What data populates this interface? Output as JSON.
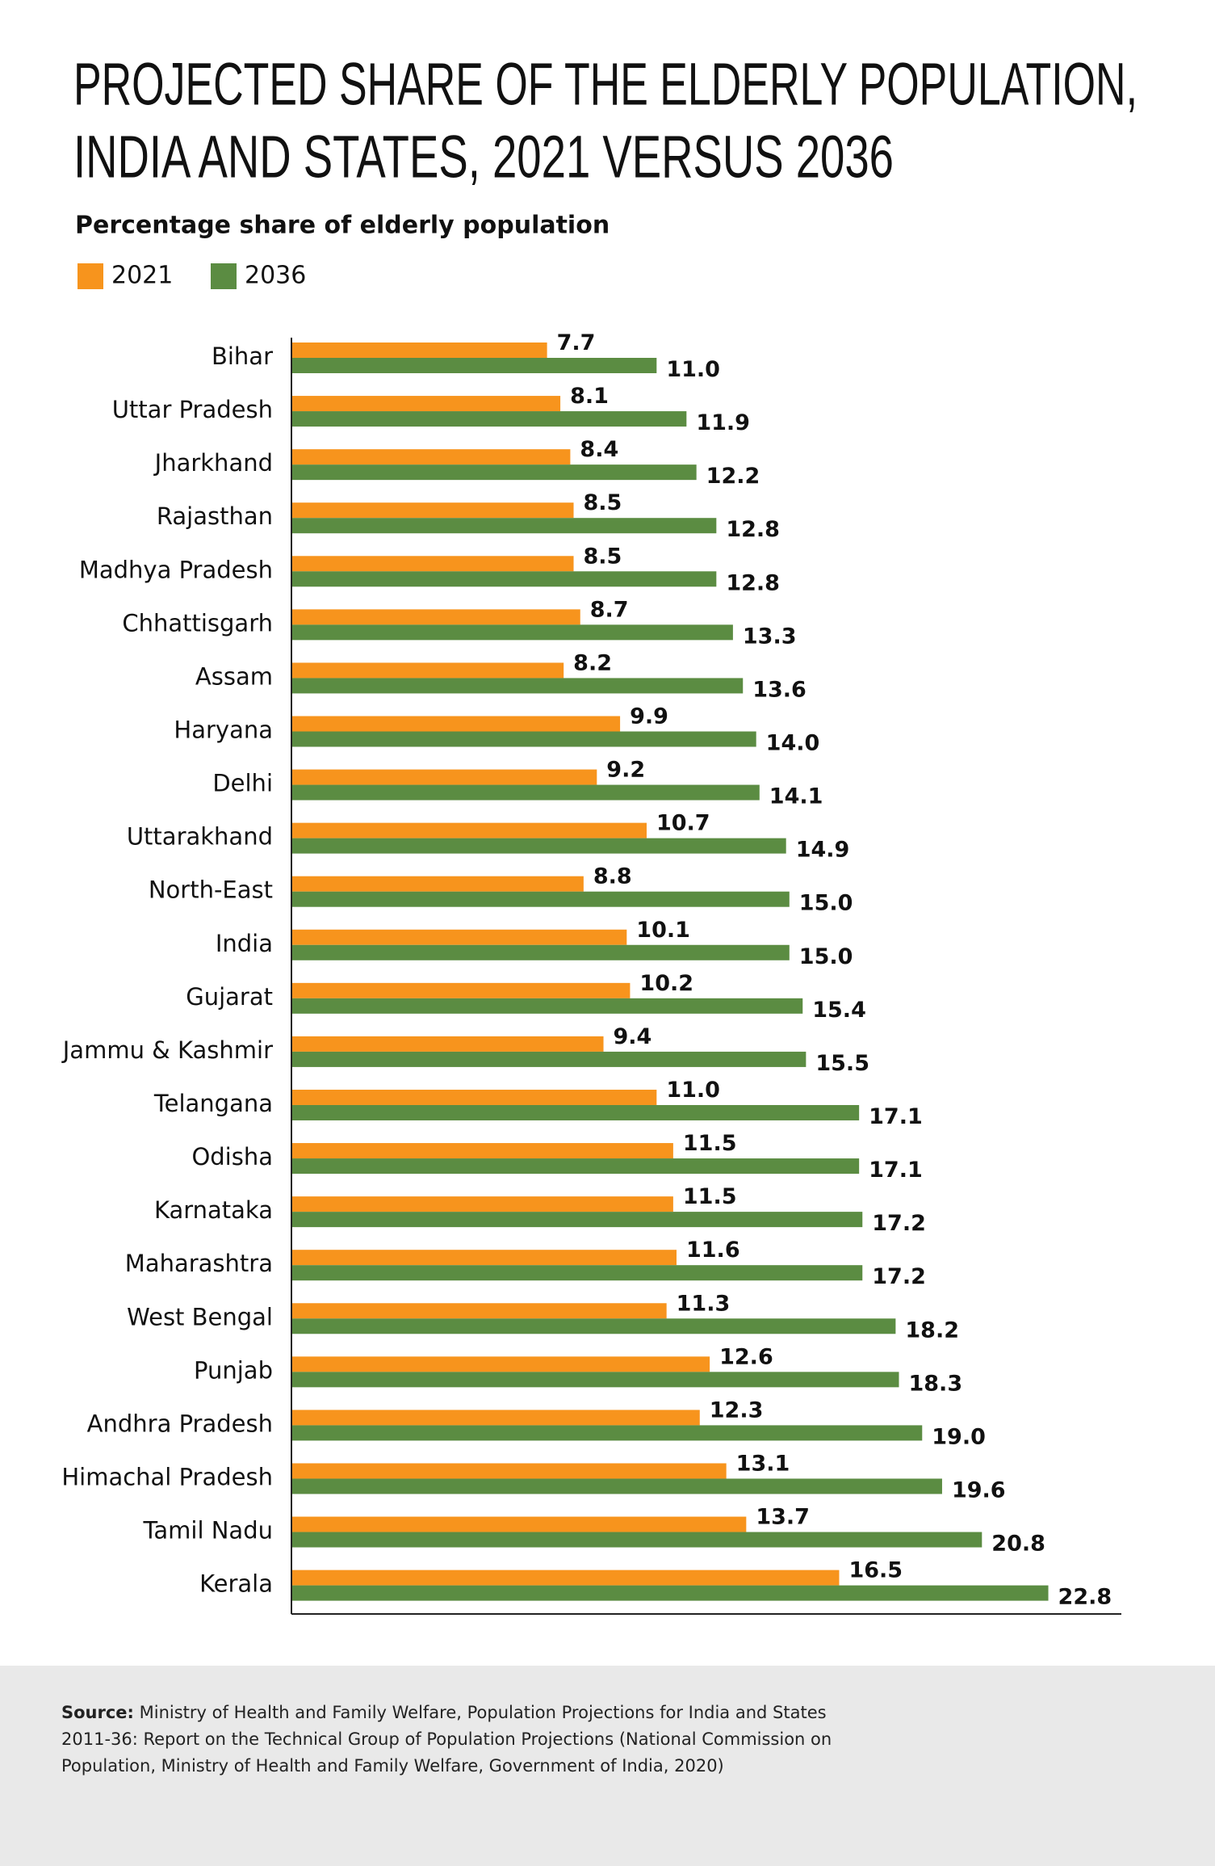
{
  "chart_data": {
    "type": "bar",
    "orientation": "horizontal",
    "title": [
      "PROJECTED SHARE OF THE ELDERLY POPULATION,",
      "INDIA AND STATES, 2021 VERSUS 2036"
    ],
    "subtitle": "Percentage share of elderly population",
    "categories": [
      "Bihar",
      "Uttar Pradesh",
      "Jharkhand",
      "Rajasthan",
      "Madhya Pradesh",
      "Chhattisgarh",
      "Assam",
      "Haryana",
      "Delhi",
      "Uttarakhand",
      "North-East",
      "India",
      "Gujarat",
      "Jammu & Kashmir",
      "Telangana",
      "Odisha",
      "Karnataka",
      "Maharashtra",
      "West Bengal",
      "Punjab",
      "Andhra Pradesh",
      "Himachal Pradesh",
      "Tamil Nadu",
      "Kerala"
    ],
    "series": [
      {
        "name": "2021",
        "color": "#f7941d",
        "values": [
          7.7,
          8.1,
          8.4,
          8.5,
          8.5,
          8.7,
          8.2,
          9.9,
          9.2,
          10.7,
          8.8,
          10.1,
          10.2,
          9.4,
          11.0,
          11.5,
          11.5,
          11.6,
          11.3,
          12.6,
          12.3,
          13.1,
          13.7,
          16.5
        ],
        "value_labels": [
          "7.7",
          "8.1",
          "8.4",
          "8.5",
          "8.5",
          "8.7",
          "8.2",
          "9.9",
          "9.2",
          "10.7",
          "8.8",
          "10.1",
          "10.2",
          "9.4",
          "11.0",
          "11.5",
          "11.5",
          "11.6",
          "11.3",
          "12.6",
          "12.3",
          "13.1",
          "13.7",
          "16.5"
        ]
      },
      {
        "name": "2036",
        "color": "#5b8c42",
        "values": [
          11.0,
          11.9,
          12.2,
          12.8,
          12.8,
          13.3,
          13.6,
          14.0,
          14.1,
          14.9,
          15.0,
          15.0,
          15.4,
          15.5,
          17.1,
          17.1,
          17.2,
          17.2,
          18.2,
          18.3,
          19.0,
          19.6,
          20.8,
          22.8
        ],
        "value_labels": [
          "11.0",
          "11.9",
          "12.2",
          "12.8",
          "12.8",
          "13.3",
          "13.6",
          "14.0",
          "14.1",
          "14.9",
          "15.0",
          "15.0",
          "15.4",
          "15.5",
          "17.1",
          "17.1",
          "17.2",
          "17.2",
          "18.2",
          "18.3",
          "19.0",
          "19.6",
          "20.8",
          "22.8"
        ]
      }
    ],
    "xlim": [
      0,
      25
    ],
    "legend": "top-left",
    "source": {
      "label": "Source:",
      "text": "Ministry of Health and Family Welfare, Population Projections for India and States 2011-36: Report on the Technical Group of Population Projections (National Commission on Population, Ministry of Health and Family Welfare, Government of India, 2020)"
    }
  }
}
